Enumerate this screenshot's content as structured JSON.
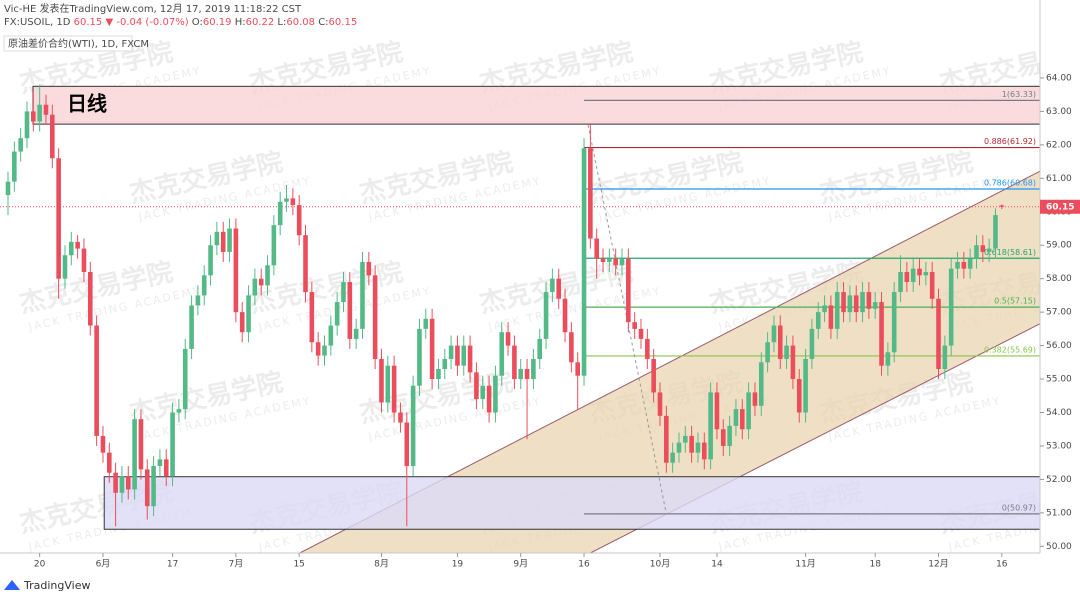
{
  "chart_data": {
    "type": "candlestick",
    "header": {
      "line1": "Vic-HE 发表在TradingView.com, 12月 17, 2019 11:18:22 CST",
      "symbol": "FX:USOIL, 1D",
      "last": "60.15",
      "arrow": "▼",
      "change": "-0.04 (-0.07%)",
      "o_label": "O:",
      "o": "60.19",
      "h_label": "H:",
      "h": "60.22",
      "l_label": "L:",
      "l": "60.08",
      "c_label": "C:",
      "c": "60.15",
      "line3": "原油差价合约(WTI), 1D, FXCM"
    },
    "up_color": "#53b987",
    "down_color": "#eb4d5c",
    "candles": [
      [
        60.5,
        61.2,
        59.9,
        60.9
      ],
      [
        60.9,
        62.1,
        60.6,
        61.8
      ],
      [
        61.8,
        62.5,
        61.5,
        62.2
      ],
      [
        62.2,
        63.3,
        61.9,
        63.0
      ],
      [
        63.0,
        63.6,
        62.4,
        62.7
      ],
      [
        62.7,
        63.8,
        62.4,
        63.2
      ],
      [
        63.2,
        63.5,
        62.6,
        62.9
      ],
      [
        62.9,
        63.2,
        61.3,
        61.6
      ],
      [
        61.6,
        61.9,
        57.4,
        58.0
      ],
      [
        58.0,
        59.0,
        57.7,
        58.7
      ],
      [
        58.7,
        59.4,
        58.4,
        59.1
      ],
      [
        59.1,
        59.3,
        58.6,
        58.9
      ],
      [
        58.9,
        59.2,
        57.9,
        58.2
      ],
      [
        58.2,
        58.5,
        56.3,
        56.6
      ],
      [
        56.6,
        56.9,
        53.0,
        53.3
      ],
      [
        53.3,
        53.6,
        52.5,
        52.8
      ],
      [
        52.8,
        53.1,
        51.9,
        52.2
      ],
      [
        52.2,
        52.5,
        50.6,
        51.6
      ],
      [
        51.6,
        52.4,
        51.3,
        52.1
      ],
      [
        52.1,
        52.4,
        51.4,
        51.7
      ],
      [
        51.7,
        54.1,
        51.4,
        53.8
      ],
      [
        53.8,
        54.1,
        52.0,
        52.3
      ],
      [
        52.3,
        52.6,
        50.8,
        51.2
      ],
      [
        51.2,
        52.7,
        50.9,
        52.4
      ],
      [
        52.4,
        52.9,
        52.1,
        52.6
      ],
      [
        52.6,
        52.9,
        51.8,
        52.1
      ],
      [
        52.1,
        54.3,
        51.8,
        54.0
      ],
      [
        54.0,
        54.4,
        53.7,
        54.1
      ],
      [
        54.1,
        56.2,
        53.8,
        55.9
      ],
      [
        55.9,
        57.5,
        55.6,
        57.2
      ],
      [
        57.2,
        57.8,
        56.9,
        57.5
      ],
      [
        57.5,
        58.4,
        57.2,
        58.1
      ],
      [
        58.1,
        59.3,
        57.8,
        59.0
      ],
      [
        59.0,
        59.7,
        58.7,
        59.4
      ],
      [
        59.4,
        59.7,
        58.5,
        58.8
      ],
      [
        58.8,
        59.8,
        58.5,
        59.5
      ],
      [
        59.5,
        59.8,
        56.7,
        57.0
      ],
      [
        57.0,
        57.3,
        56.1,
        56.4
      ],
      [
        56.4,
        57.8,
        56.1,
        57.5
      ],
      [
        57.5,
        58.3,
        57.2,
        58.0
      ],
      [
        58.0,
        58.3,
        57.5,
        57.8
      ],
      [
        57.8,
        58.7,
        57.5,
        58.4
      ],
      [
        58.4,
        59.9,
        58.1,
        59.6
      ],
      [
        59.6,
        60.6,
        59.3,
        60.3
      ],
      [
        60.3,
        60.8,
        60.0,
        60.4
      ],
      [
        60.4,
        60.7,
        59.9,
        60.2
      ],
      [
        60.2,
        60.5,
        59.0,
        59.3
      ],
      [
        59.3,
        59.6,
        57.3,
        57.6
      ],
      [
        57.6,
        57.9,
        55.8,
        56.1
      ],
      [
        56.1,
        56.4,
        55.4,
        55.7
      ],
      [
        55.7,
        56.3,
        55.4,
        56.0
      ],
      [
        56.0,
        56.9,
        55.7,
        56.6
      ],
      [
        56.6,
        57.6,
        56.3,
        57.3
      ],
      [
        57.3,
        58.2,
        57.0,
        57.9
      ],
      [
        57.9,
        58.2,
        55.9,
        56.2
      ],
      [
        56.2,
        56.8,
        55.9,
        56.5
      ],
      [
        56.5,
        58.8,
        56.2,
        58.5
      ],
      [
        58.5,
        58.8,
        57.8,
        58.1
      ],
      [
        58.1,
        58.4,
        55.3,
        55.6
      ],
      [
        55.6,
        55.9,
        54.0,
        54.3
      ],
      [
        54.3,
        55.7,
        54.0,
        55.4
      ],
      [
        55.4,
        55.7,
        53.7,
        54.0
      ],
      [
        54.0,
        54.3,
        53.4,
        53.7
      ],
      [
        53.7,
        54.0,
        50.6,
        52.4
      ],
      [
        52.4,
        55.1,
        52.1,
        54.8
      ],
      [
        54.8,
        56.8,
        54.5,
        56.5
      ],
      [
        56.5,
        57.1,
        56.2,
        56.8
      ],
      [
        56.8,
        57.1,
        54.7,
        55.0
      ],
      [
        55.0,
        55.6,
        54.7,
        55.3
      ],
      [
        55.3,
        55.9,
        55.0,
        55.6
      ],
      [
        55.6,
        56.3,
        55.3,
        56.0
      ],
      [
        56.0,
        56.3,
        55.1,
        55.4
      ],
      [
        55.4,
        56.3,
        55.1,
        56.0
      ],
      [
        56.0,
        56.3,
        54.9,
        55.2
      ],
      [
        55.2,
        55.5,
        54.1,
        54.4
      ],
      [
        54.4,
        55.1,
        54.1,
        54.8
      ],
      [
        54.8,
        55.1,
        53.7,
        54.0
      ],
      [
        54.0,
        55.4,
        53.7,
        55.1
      ],
      [
        55.1,
        56.7,
        54.8,
        56.4
      ],
      [
        56.4,
        56.7,
        55.7,
        56.0
      ],
      [
        56.0,
        56.3,
        54.7,
        55.0
      ],
      [
        55.0,
        55.6,
        54.7,
        55.3
      ],
      [
        55.3,
        55.6,
        53.2,
        55.0
      ],
      [
        55.0,
        55.9,
        54.7,
        55.6
      ],
      [
        55.6,
        56.5,
        55.3,
        56.2
      ],
      [
        56.2,
        57.9,
        55.9,
        57.6
      ],
      [
        57.6,
        58.3,
        57.3,
        58.0
      ],
      [
        58.0,
        58.3,
        57.1,
        57.4
      ],
      [
        57.4,
        57.7,
        56.1,
        56.4
      ],
      [
        56.4,
        56.7,
        55.2,
        55.5
      ],
      [
        55.5,
        55.8,
        54.1,
        55.1
      ],
      [
        55.1,
        62.2,
        54.8,
        61.9
      ],
      [
        61.9,
        62.6,
        58.9,
        59.2
      ],
      [
        59.2,
        59.5,
        58.0,
        58.6
      ],
      [
        58.6,
        58.9,
        58.2,
        58.5
      ],
      [
        58.5,
        58.9,
        58.2,
        58.6
      ],
      [
        58.6,
        58.9,
        58.1,
        58.4
      ],
      [
        58.4,
        58.9,
        58.1,
        58.6
      ],
      [
        58.6,
        58.9,
        56.4,
        56.7
      ],
      [
        56.7,
        57.0,
        56.2,
        56.5
      ],
      [
        56.5,
        56.8,
        55.9,
        56.2
      ],
      [
        56.2,
        56.5,
        55.3,
        55.6
      ],
      [
        55.6,
        55.9,
        54.3,
        54.6
      ],
      [
        54.6,
        54.9,
        53.6,
        53.9
      ],
      [
        53.9,
        54.2,
        52.2,
        52.5
      ],
      [
        52.5,
        53.1,
        52.2,
        52.8
      ],
      [
        52.8,
        53.4,
        52.5,
        53.1
      ],
      [
        53.1,
        53.6,
        52.8,
        53.3
      ],
      [
        53.3,
        53.6,
        52.5,
        52.8
      ],
      [
        52.8,
        53.4,
        52.5,
        53.1
      ],
      [
        53.1,
        53.4,
        52.3,
        52.6
      ],
      [
        52.6,
        54.9,
        52.3,
        54.6
      ],
      [
        54.6,
        54.9,
        53.2,
        53.5
      ],
      [
        53.5,
        53.8,
        52.7,
        53.0
      ],
      [
        53.0,
        53.9,
        52.7,
        53.6
      ],
      [
        53.6,
        54.4,
        53.3,
        54.1
      ],
      [
        54.1,
        54.4,
        53.2,
        53.5
      ],
      [
        53.5,
        54.9,
        53.2,
        54.6
      ],
      [
        54.6,
        54.9,
        53.9,
        54.2
      ],
      [
        54.2,
        55.8,
        53.9,
        55.5
      ],
      [
        55.5,
        56.4,
        55.2,
        56.1
      ],
      [
        56.1,
        56.9,
        55.8,
        56.6
      ],
      [
        56.6,
        56.9,
        55.3,
        55.6
      ],
      [
        55.6,
        56.3,
        55.3,
        56.0
      ],
      [
        56.0,
        56.3,
        54.7,
        55.0
      ],
      [
        55.0,
        55.3,
        53.7,
        54.0
      ],
      [
        54.0,
        55.9,
        53.7,
        55.6
      ],
      [
        55.6,
        56.8,
        55.3,
        56.5
      ],
      [
        56.5,
        57.3,
        56.2,
        57.0
      ],
      [
        57.0,
        57.5,
        56.7,
        57.2
      ],
      [
        57.2,
        57.5,
        56.2,
        56.5
      ],
      [
        56.5,
        57.9,
        56.2,
        57.6
      ],
      [
        57.6,
        57.9,
        56.7,
        57.0
      ],
      [
        57.0,
        57.8,
        56.7,
        57.5
      ],
      [
        57.5,
        57.8,
        56.7,
        57.0
      ],
      [
        57.0,
        57.9,
        56.7,
        57.6
      ],
      [
        57.6,
        57.9,
        56.8,
        57.1
      ],
      [
        57.1,
        57.6,
        56.8,
        57.3
      ],
      [
        57.3,
        57.6,
        55.1,
        55.4
      ],
      [
        55.4,
        56.1,
        55.1,
        55.8
      ],
      [
        55.8,
        57.9,
        55.5,
        57.6
      ],
      [
        57.6,
        58.7,
        57.3,
        58.2
      ],
      [
        58.2,
        58.5,
        57.6,
        57.9
      ],
      [
        57.9,
        58.6,
        57.6,
        58.3
      ],
      [
        58.3,
        58.6,
        57.8,
        58.1
      ],
      [
        58.1,
        58.5,
        57.8,
        58.2
      ],
      [
        58.2,
        58.5,
        57.1,
        57.4
      ],
      [
        57.4,
        57.7,
        55.0,
        55.3
      ],
      [
        55.3,
        56.3,
        55.0,
        56.0
      ],
      [
        56.0,
        58.6,
        55.7,
        58.3
      ],
      [
        58.3,
        58.8,
        58.0,
        58.5
      ],
      [
        58.5,
        58.8,
        58.0,
        58.3
      ],
      [
        58.3,
        58.9,
        58.0,
        58.6
      ],
      [
        58.6,
        59.3,
        58.3,
        59.0
      ],
      [
        59.0,
        59.3,
        58.5,
        58.8
      ],
      [
        58.8,
        59.2,
        58.5,
        58.9
      ],
      [
        58.9,
        60.1,
        58.6,
        59.9
      ],
      [
        60.19,
        60.22,
        60.08,
        60.15
      ]
    ],
    "ylim": [
      49.8,
      64.42
    ],
    "yticks": [
      {
        "value": 50,
        "label": "50.00"
      },
      {
        "value": 51,
        "label": "51.00"
      },
      {
        "value": 52,
        "label": "52.00"
      },
      {
        "value": 53,
        "label": "53.00"
      },
      {
        "value": 54,
        "label": "54.00"
      },
      {
        "value": 55,
        "label": "55.00"
      },
      {
        "value": 56,
        "label": "56.00"
      },
      {
        "value": 57,
        "label": "57.00"
      },
      {
        "value": 58,
        "label": "58.00"
      },
      {
        "value": 59,
        "label": "59.00"
      },
      {
        "value": 60,
        "label": "60.00"
      },
      {
        "value": 61,
        "label": "61.00"
      },
      {
        "value": 62,
        "label": "62.00"
      },
      {
        "value": 63,
        "label": "63.00"
      },
      {
        "value": 64,
        "label": "64.00"
      }
    ],
    "xticks": [
      {
        "value": 5,
        "label": "20"
      },
      {
        "value": 15,
        "label": "6月"
      },
      {
        "value": 26,
        "label": "17"
      },
      {
        "value": 36,
        "label": "7月"
      },
      {
        "value": 46,
        "label": "15"
      },
      {
        "value": 59,
        "label": "8月"
      },
      {
        "value": 71,
        "label": "19"
      },
      {
        "value": 81,
        "label": "9月"
      },
      {
        "value": 91,
        "label": "16"
      },
      {
        "value": 103,
        "label": "10月"
      },
      {
        "value": 112,
        "label": "14"
      },
      {
        "value": 126,
        "label": "11月"
      },
      {
        "value": 137,
        "label": "18"
      },
      {
        "value": 147,
        "label": "12月"
      },
      {
        "value": 157,
        "label": "16"
      }
    ],
    "last_price": 60.15,
    "last_label": "60.15",
    "zones": [
      {
        "label": "日线",
        "from": 3.95,
        "top": 63.75,
        "bottom": 62.62,
        "fill": "#f9d3d6",
        "stroke": "#333333"
      },
      {
        "from": 15.2,
        "top": 52.08,
        "bottom": 50.51,
        "fill": "#dcdaf6",
        "stroke": "#333333"
      }
    ],
    "channel": {
      "upper": [
        [
          46.1,
          49.8
        ],
        [
          163,
          61.21
        ]
      ],
      "lower": [
        [
          92,
          49.8
        ],
        [
          163,
          56.65
        ]
      ],
      "fill": "#ead6b2",
      "stroke": "#9b5a6a"
    },
    "fib_from": 91,
    "fib_levels": [
      {
        "label": "1(63.33)",
        "price": 63.33,
        "color": "#787b86"
      },
      {
        "label": "0.886(61.92)",
        "price": 61.92,
        "color": "#b22833"
      },
      {
        "label": "0.786(60.68)",
        "price": 60.68,
        "color": "#2196f3"
      },
      {
        "label": "0.618(58.61)",
        "price": 58.61,
        "color": "#26a66b"
      },
      {
        "label": "0.5(57.15)",
        "price": 57.15,
        "color": "#4caf50"
      },
      {
        "label": "0.382(55.69)",
        "price": 55.69,
        "color": "#8bc34a"
      },
      {
        "label": "0(50.97)",
        "price": 50.97,
        "color": "#787b86"
      }
    ],
    "watermark": {
      "title": "杰克交易学院",
      "subtitle": "JACK TRADING ACADEMY"
    },
    "brand": "TradingView"
  }
}
